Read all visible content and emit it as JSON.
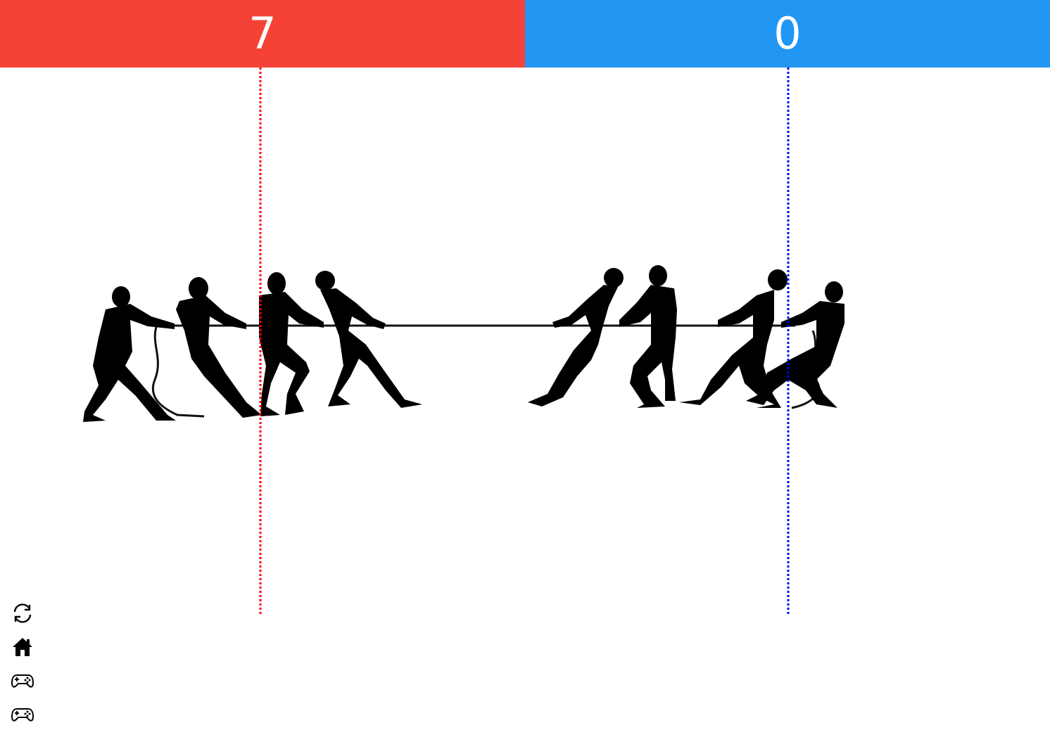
{
  "scoreboard": {
    "red_score": "7",
    "blue_score": "0",
    "red_color": "#f44336",
    "blue_color": "#2196f3"
  },
  "markers": {
    "red_line_color": "#ff0000",
    "blue_line_color": "#0000ff"
  },
  "toolbar": {
    "buttons": [
      "refresh-icon",
      "home-icon",
      "gamepad-icon",
      "gamepad-icon"
    ]
  }
}
